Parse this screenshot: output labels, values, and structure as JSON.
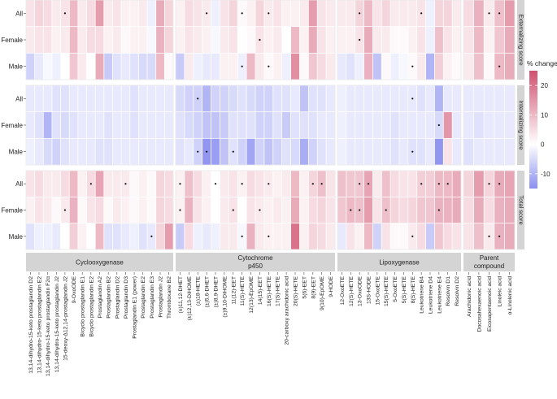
{
  "chart_data": {
    "type": "heatmap",
    "title": "",
    "legend_title": "% change",
    "scale": {
      "min": -15,
      "max": 25,
      "ticks": [
        20,
        10,
        0,
        -10
      ],
      "low_color": "#8a8ff0",
      "mid_color": "#ffffff",
      "high_color": "#d0506f"
    },
    "rows": [
      "All",
      "Female",
      "Male"
    ],
    "facet_rows": [
      "Externalizing score",
      "Internalizing score",
      "Total score"
    ],
    "groups": [
      {
        "name": "Cyclooxygenase",
        "label_lines": [
          "Cyclooxygenase"
        ],
        "compounds": [
          "13,14-dihydro-15-keto prostaglandin D2",
          "13,14-dihydro-15-keto prostaglandin E2",
          "13,14-dihydro-15-keto prostaglandin F2α",
          "13,14-dihydro-15-keto prostaglandin J2",
          "15-deoxy-Δ12,14-prostaglandin J2",
          "9-OxoODE",
          "Bicyclo prostaglandin E1",
          "Bicyclo prostaglandin E2",
          "Prostaglandin A2",
          "Prostaglandin B2",
          "Prostaglandin D2",
          "Prostaglandin D3",
          "Prostaglandin E1 (power)",
          "Prostaglandin E2",
          "Prostaglandin E3",
          "Prostaglandin J2",
          "Thromboxane B2"
        ]
      },
      {
        "name": "Cytochrome p450",
        "label_lines": [
          "Cytochrome",
          "p450"
        ],
        "compounds": [
          "(±)11,12-DHET",
          "(±)12,13-DiHOME",
          "(±)18-HETE",
          "(±)5,6-DHET",
          "(±)8,9-DHET",
          "(±)9,10-DiHOME",
          "11(12)-EET",
          "11(S)-HETE",
          "12(13)-EpOME",
          "14(15)-EET",
          "16(S)-HETE",
          "17(S)-HETE",
          "20-carboxy arachidonic acid",
          "20(S)-HETE",
          "5(6)-EET",
          "8(9)-EET",
          "9(10)-EpOME",
          "9-HODE"
        ]
      },
      {
        "name": "Lipoxygenase",
        "label_lines": [
          "Lipoxygenase"
        ],
        "compounds": [
          "12-OxoETE",
          "12(S)-HETE",
          "13-OxoODE",
          "13S-HODE",
          "15-OxoETE",
          "15(S)-HETE",
          "5-OxoETE",
          "5(S)-HETE",
          "8(S)-HETE",
          "Leukotriene B4",
          "Leukotriene D4",
          "Leukotriene E4",
          "Resolvin D1",
          "Resolvin D2"
        ]
      },
      {
        "name": "Parent compound",
        "label_lines": [
          "Parent",
          "compound"
        ],
        "compounds": [
          "Arachidonic acid",
          "Docosahexaenoic acid",
          "Eicosapentaenoic acid",
          "Linoleic acid",
          "α-Linolenic acid"
        ]
      }
    ],
    "values": {
      "Externalizing score": [
        [
          [
            4,
            6,
            5,
            3,
            4,
            10,
            3,
            5,
            14,
            3,
            4,
            2,
            2,
            3,
            -2,
            12,
            6
          ],
          [
            3,
            4,
            4,
            2,
            3,
            10,
            3,
            5,
            5,
            2,
            3,
            1,
            2,
            2,
            -1,
            11,
            6
          ],
          [
            -6,
            -3,
            -1,
            -2,
            0,
            8,
            3,
            0,
            12,
            -7,
            -4,
            -3,
            -4,
            -5,
            -5,
            10,
            1
          ]
        ],
        [
          [
            2,
            5,
            4,
            3,
            -2,
            4,
            6,
            1,
            2,
            6,
            3,
            4,
            2,
            2,
            3,
            14,
            4,
            3
          ],
          [
            2,
            4,
            3,
            2,
            -1,
            3,
            4,
            0,
            1,
            4,
            2,
            3,
            0,
            10,
            2,
            12,
            4,
            2
          ],
          [
            -7,
            3,
            -2,
            -3,
            -3,
            2,
            2,
            -2,
            10,
            3,
            1,
            2,
            -2,
            16,
            1,
            8,
            5,
            3
          ]
        ],
        [
          [
            3,
            3,
            6,
            10,
            4,
            6,
            3,
            3,
            3,
            4,
            -2,
            6,
            6,
            3
          ],
          [
            2,
            2,
            4,
            12,
            3,
            3,
            1,
            1,
            2,
            4,
            -2,
            9,
            4,
            2
          ],
          [
            -3,
            -4,
            -2,
            11,
            -8,
            1,
            -2,
            -1,
            1,
            3,
            -10,
            7,
            2,
            1
          ]
        ],
        [
          [
            5,
            11,
            3,
            9,
            14
          ],
          [
            4,
            10,
            2,
            8,
            12
          ],
          [
            3,
            9,
            1,
            10,
            12
          ]
        ]
      ],
      "Internalizing score": [
        [
          [
            -3,
            -3,
            -3,
            -4,
            -4,
            -3,
            -3,
            -3,
            -3,
            -3,
            -3,
            -3,
            -4,
            -3,
            -3,
            -3,
            -3
          ],
          [
            -3,
            -4,
            -10,
            -4,
            -5,
            -4,
            -3,
            -3,
            -3,
            -4,
            -3,
            -3,
            -4,
            -3,
            -3,
            -3,
            -3
          ],
          [
            -2,
            -3,
            -5,
            -6,
            -4,
            -3,
            -3,
            -3,
            -4,
            -4,
            -3,
            -3,
            -3,
            -3,
            -3,
            -3,
            -3
          ]
        ],
        [
          [
            -5,
            -6,
            -6,
            -10,
            -6,
            -6,
            -5,
            -4,
            -5,
            -6,
            -6,
            -4,
            -4,
            -3,
            -8,
            -4,
            -4,
            -3
          ],
          [
            -4,
            -5,
            -6,
            -8,
            -8,
            -7,
            -4,
            -4,
            -4,
            -6,
            -6,
            -4,
            -7,
            -4,
            -4,
            -4,
            -3,
            -3
          ],
          [
            -4,
            -3,
            -6,
            -14,
            -13,
            -8,
            -4,
            -6,
            -12,
            -6,
            -8,
            -6,
            -4,
            -5,
            -11,
            -6,
            -4,
            -3
          ]
        ],
        [
          [
            -2,
            -3,
            -3,
            -3,
            -3,
            -3,
            -3,
            -3,
            -3,
            -4,
            -3,
            -10,
            -3,
            -3
          ],
          [
            -2,
            -3,
            -3,
            -3,
            -3,
            -3,
            -4,
            -3,
            -3,
            -3,
            -3,
            -5,
            15,
            -3
          ],
          [
            -2,
            -3,
            -3,
            -3,
            -3,
            -3,
            -4,
            -3,
            -4,
            -4,
            -3,
            -14,
            4,
            -3
          ]
        ],
        [
          [
            -3,
            -3,
            -3,
            -3,
            -3
          ],
          [
            -3,
            -4,
            -3,
            -3,
            -3
          ],
          [
            -4,
            -3,
            -3,
            -3,
            -3
          ]
        ]
      ],
      "Total score": [
        [
          [
            4,
            5,
            3,
            3,
            5,
            10,
            2,
            5,
            13,
            3,
            3,
            3,
            1,
            2,
            1,
            6,
            5
          ],
          [
            2,
            4,
            3,
            1,
            3,
            11,
            1,
            4,
            5,
            1,
            3,
            2,
            1,
            2,
            1,
            6,
            5
          ],
          [
            -4,
            -2,
            -2,
            -3,
            0,
            7,
            2,
            0,
            10,
            -4,
            -4,
            -3,
            -2,
            -4,
            -3,
            6,
            14
          ]
        ],
        [
          [
            2,
            9,
            5,
            2,
            0,
            3,
            4,
            2,
            5,
            4,
            3,
            2,
            3,
            10,
            2,
            6,
            9,
            4
          ],
          [
            2,
            11,
            4,
            2,
            0,
            3,
            4,
            0,
            4,
            3,
            2,
            3,
            2,
            12,
            2,
            5,
            6,
            4
          ],
          [
            -7,
            5,
            -2,
            -3,
            -2,
            3,
            3,
            -1,
            11,
            3,
            2,
            2,
            2,
            20,
            2,
            6,
            5,
            3
          ]
        ],
        [
          [
            9,
            8,
            8,
            13,
            3,
            9,
            5,
            4,
            4,
            7,
            7,
            10,
            10,
            12
          ],
          [
            8,
            10,
            9,
            14,
            4,
            9,
            6,
            5,
            6,
            8,
            8,
            11,
            11,
            12
          ],
          [
            -3,
            4,
            2,
            10,
            -6,
            4,
            1,
            1,
            3,
            5,
            -7,
            8,
            5,
            4
          ]
        ],
        [
          [
            6,
            14,
            6,
            12,
            13
          ],
          [
            5,
            12,
            5,
            11,
            12
          ],
          [
            4,
            9,
            3,
            11,
            12
          ]
        ]
      ]
    },
    "significance_dots": {
      "Externalizing score": [
        [
          [
            5
          ],
          [],
          []
        ],
        [
          [
            4,
            8,
            11
          ],
          [
            10
          ],
          [
            8,
            11
          ]
        ],
        [
          [
            3,
            10
          ],
          [
            3
          ],
          [
            9
          ]
        ],
        [
          [
            3,
            4
          ],
          [],
          [
            4
          ]
        ]
      ],
      "Internalizing score": [
        [
          [],
          [],
          []
        ],
        [
          [
            3
          ],
          [],
          [
            3,
            4,
            7
          ]
        ],
        [
          [
            9
          ],
          [
            12
          ],
          [
            9
          ]
        ],
        [
          [],
          [],
          []
        ]
      ],
      "Total score": [
        [
          [
            8,
            12
          ],
          [
            5
          ],
          [
            15
          ]
        ],
        [
          [
            1,
            5,
            8,
            11,
            16,
            17
          ],
          [
            1,
            7,
            10
          ],
          [
            8,
            11
          ]
        ],
        [
          [
            3,
            4,
            10,
            12,
            13
          ],
          [
            2,
            3,
            6,
            12
          ],
          [
            9
          ]
        ],
        [
          [
            3,
            4
          ],
          [],
          [
            3,
            4
          ]
        ]
      ]
    }
  }
}
